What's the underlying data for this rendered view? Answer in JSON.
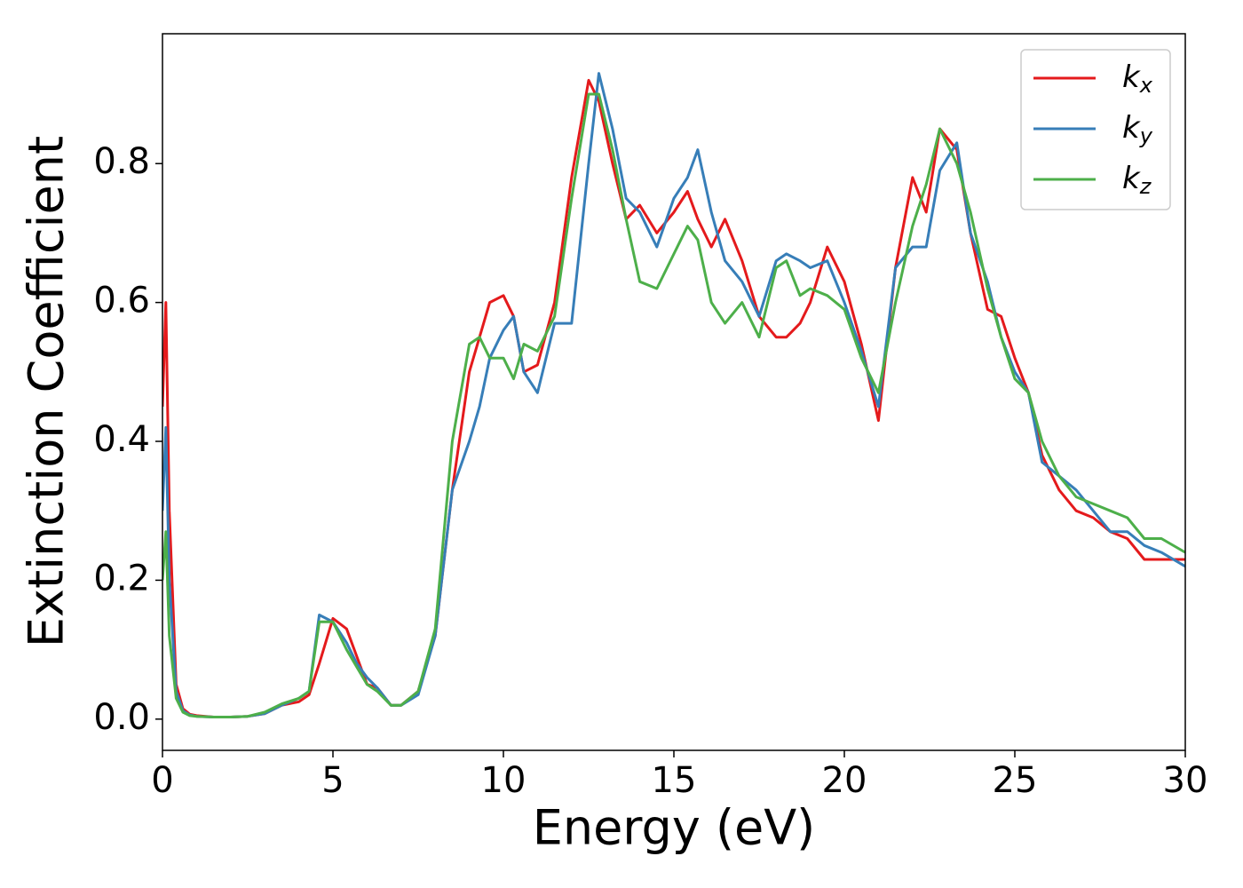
{
  "chart_data": {
    "type": "line",
    "xlabel": "Energy (eV)",
    "ylabel": "Extinction Coefficient",
    "x": [
      0,
      0.1,
      0.2,
      0.4,
      0.6,
      0.8,
      1,
      1.5,
      2,
      2.5,
      3,
      3.5,
      4,
      4.3,
      4.6,
      5,
      5.4,
      5.7,
      6,
      6.3,
      6.7,
      7,
      7.5,
      8,
      8.5,
      9,
      9.3,
      9.6,
      10,
      10.3,
      10.6,
      11,
      11.5,
      12,
      12.5,
      12.8,
      13.2,
      13.6,
      14,
      14.5,
      15,
      15.4,
      15.7,
      16.1,
      16.5,
      17,
      17.5,
      18,
      18.3,
      18.7,
      19,
      19.5,
      20,
      20.5,
      21,
      21.5,
      22,
      22.4,
      22.8,
      23.3,
      23.7,
      24.2,
      24.6,
      25,
      25.4,
      25.8,
      26.3,
      26.8,
      27.3,
      27.8,
      28.3,
      28.8,
      29.3,
      30
    ],
    "series": [
      {
        "name": "kx",
        "color": "#e41a1c",
        "values": [
          0.45,
          0.6,
          0.3,
          0.05,
          0.015,
          0.007,
          0.005,
          0.003,
          0.003,
          0.004,
          0.008,
          0.02,
          0.025,
          0.035,
          0.08,
          0.145,
          0.13,
          0.09,
          0.05,
          0.045,
          0.02,
          0.02,
          0.04,
          0.12,
          0.33,
          0.5,
          0.55,
          0.6,
          0.61,
          0.58,
          0.5,
          0.51,
          0.6,
          0.78,
          0.92,
          0.89,
          0.8,
          0.72,
          0.74,
          0.7,
          0.73,
          0.76,
          0.72,
          0.68,
          0.72,
          0.66,
          0.58,
          0.55,
          0.55,
          0.57,
          0.6,
          0.68,
          0.63,
          0.54,
          0.43,
          0.65,
          0.78,
          0.73,
          0.85,
          0.82,
          0.7,
          0.59,
          0.58,
          0.52,
          0.47,
          0.38,
          0.33,
          0.3,
          0.29,
          0.27,
          0.26,
          0.23,
          0.23,
          0.23
        ]
      },
      {
        "name": "ky",
        "color": "#377eb8",
        "values": [
          0.3,
          0.42,
          0.2,
          0.04,
          0.012,
          0.006,
          0.004,
          0.003,
          0.003,
          0.004,
          0.008,
          0.02,
          0.03,
          0.04,
          0.15,
          0.14,
          0.11,
          0.08,
          0.06,
          0.045,
          0.02,
          0.02,
          0.035,
          0.12,
          0.33,
          0.4,
          0.45,
          0.52,
          0.56,
          0.58,
          0.5,
          0.47,
          0.57,
          0.57,
          0.8,
          0.93,
          0.85,
          0.75,
          0.73,
          0.68,
          0.75,
          0.78,
          0.82,
          0.73,
          0.66,
          0.63,
          0.58,
          0.66,
          0.67,
          0.66,
          0.65,
          0.66,
          0.6,
          0.53,
          0.45,
          0.65,
          0.68,
          0.68,
          0.79,
          0.83,
          0.7,
          0.63,
          0.55,
          0.5,
          0.47,
          0.37,
          0.35,
          0.33,
          0.3,
          0.27,
          0.27,
          0.25,
          0.24,
          0.22
        ]
      },
      {
        "name": "kz",
        "color": "#4daf4a",
        "values": [
          0.2,
          0.27,
          0.12,
          0.03,
          0.01,
          0.005,
          0.004,
          0.003,
          0.003,
          0.004,
          0.01,
          0.022,
          0.03,
          0.04,
          0.14,
          0.14,
          0.1,
          0.075,
          0.05,
          0.04,
          0.02,
          0.02,
          0.04,
          0.13,
          0.4,
          0.54,
          0.55,
          0.52,
          0.52,
          0.49,
          0.54,
          0.53,
          0.58,
          0.75,
          0.9,
          0.9,
          0.82,
          0.72,
          0.63,
          0.62,
          0.67,
          0.71,
          0.69,
          0.6,
          0.57,
          0.6,
          0.55,
          0.65,
          0.66,
          0.61,
          0.62,
          0.61,
          0.59,
          0.52,
          0.47,
          0.6,
          0.71,
          0.77,
          0.85,
          0.8,
          0.73,
          0.62,
          0.55,
          0.49,
          0.47,
          0.4,
          0.35,
          0.32,
          0.31,
          0.3,
          0.29,
          0.26,
          0.26,
          0.24
        ]
      }
    ],
    "xlim": [
      0,
      30
    ],
    "xticks": [
      0,
      5,
      10,
      15,
      20,
      25,
      30
    ],
    "ylim": [
      -0.045,
      0.987
    ],
    "yticks": [
      {
        "value": 0,
        "label": "0.0"
      },
      0.2,
      0.4,
      0.6,
      0.8
    ],
    "grid": false,
    "legend": "upper right"
  }
}
